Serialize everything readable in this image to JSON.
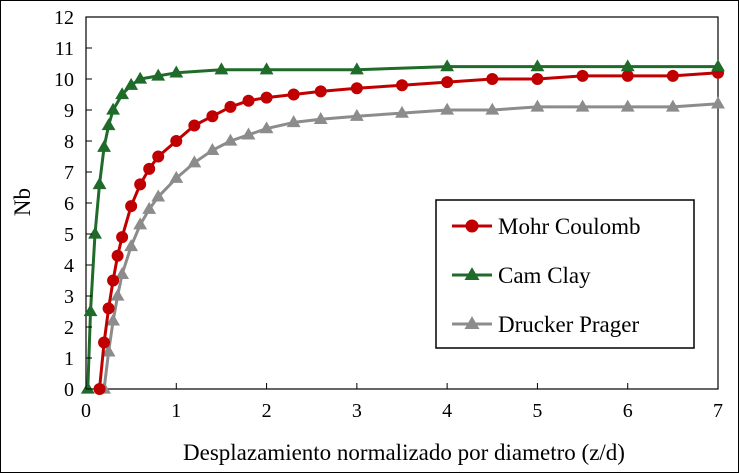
{
  "chart_data": {
    "type": "line",
    "title": "",
    "xlabel": "Desplazamiento normalizado por diametro (z/d)",
    "ylabel": "Nb",
    "xlim": [
      0,
      7
    ],
    "ylim": [
      0,
      12
    ],
    "x_ticks": [
      "0",
      "1",
      "2",
      "3",
      "4",
      "5",
      "6",
      "7"
    ],
    "y_ticks": [
      "0",
      "1",
      "2",
      "3",
      "4",
      "5",
      "6",
      "7",
      "8",
      "9",
      "10",
      "11",
      "12"
    ],
    "grid": false,
    "legend_position": "right",
    "series": [
      {
        "name": "Mohr Coulomb",
        "color": "#c00000",
        "marker": "circle",
        "x": [
          0.15,
          0.2,
          0.25,
          0.3,
          0.35,
          0.4,
          0.5,
          0.6,
          0.7,
          0.8,
          1.0,
          1.2,
          1.4,
          1.6,
          1.8,
          2.0,
          2.3,
          2.6,
          3.0,
          3.5,
          4.0,
          4.5,
          5.0,
          5.5,
          6.0,
          6.5,
          7.0
        ],
        "y": [
          0.0,
          1.5,
          2.6,
          3.5,
          4.3,
          4.9,
          5.9,
          6.6,
          7.1,
          7.5,
          8.0,
          8.5,
          8.8,
          9.1,
          9.3,
          9.4,
          9.5,
          9.6,
          9.7,
          9.8,
          9.9,
          10.0,
          10.0,
          10.1,
          10.1,
          10.1,
          10.2
        ]
      },
      {
        "name": "Cam Clay",
        "color": "#1f6b2a",
        "marker": "triangle",
        "x": [
          0.02,
          0.05,
          0.1,
          0.15,
          0.2,
          0.25,
          0.3,
          0.4,
          0.5,
          0.6,
          0.8,
          1.0,
          1.5,
          2.0,
          3.0,
          4.0,
          5.0,
          6.0,
          7.0
        ],
        "y": [
          0.0,
          2.5,
          5.0,
          6.6,
          7.8,
          8.5,
          9.0,
          9.5,
          9.8,
          10.0,
          10.1,
          10.2,
          10.3,
          10.3,
          10.3,
          10.4,
          10.4,
          10.4,
          10.4
        ]
      },
      {
        "name": "Drucker Prager",
        "color": "#8c8c8c",
        "marker": "triangle",
        "x": [
          0.2,
          0.25,
          0.3,
          0.35,
          0.4,
          0.5,
          0.6,
          0.7,
          0.8,
          1.0,
          1.2,
          1.4,
          1.6,
          1.8,
          2.0,
          2.3,
          2.6,
          3.0,
          3.5,
          4.0,
          4.5,
          5.0,
          5.5,
          6.0,
          6.5,
          7.0
        ],
        "y": [
          0.0,
          1.2,
          2.2,
          3.0,
          3.7,
          4.6,
          5.3,
          5.8,
          6.2,
          6.8,
          7.3,
          7.7,
          8.0,
          8.2,
          8.4,
          8.6,
          8.7,
          8.8,
          8.9,
          9.0,
          9.0,
          9.1,
          9.1,
          9.1,
          9.1,
          9.2
        ]
      }
    ]
  }
}
